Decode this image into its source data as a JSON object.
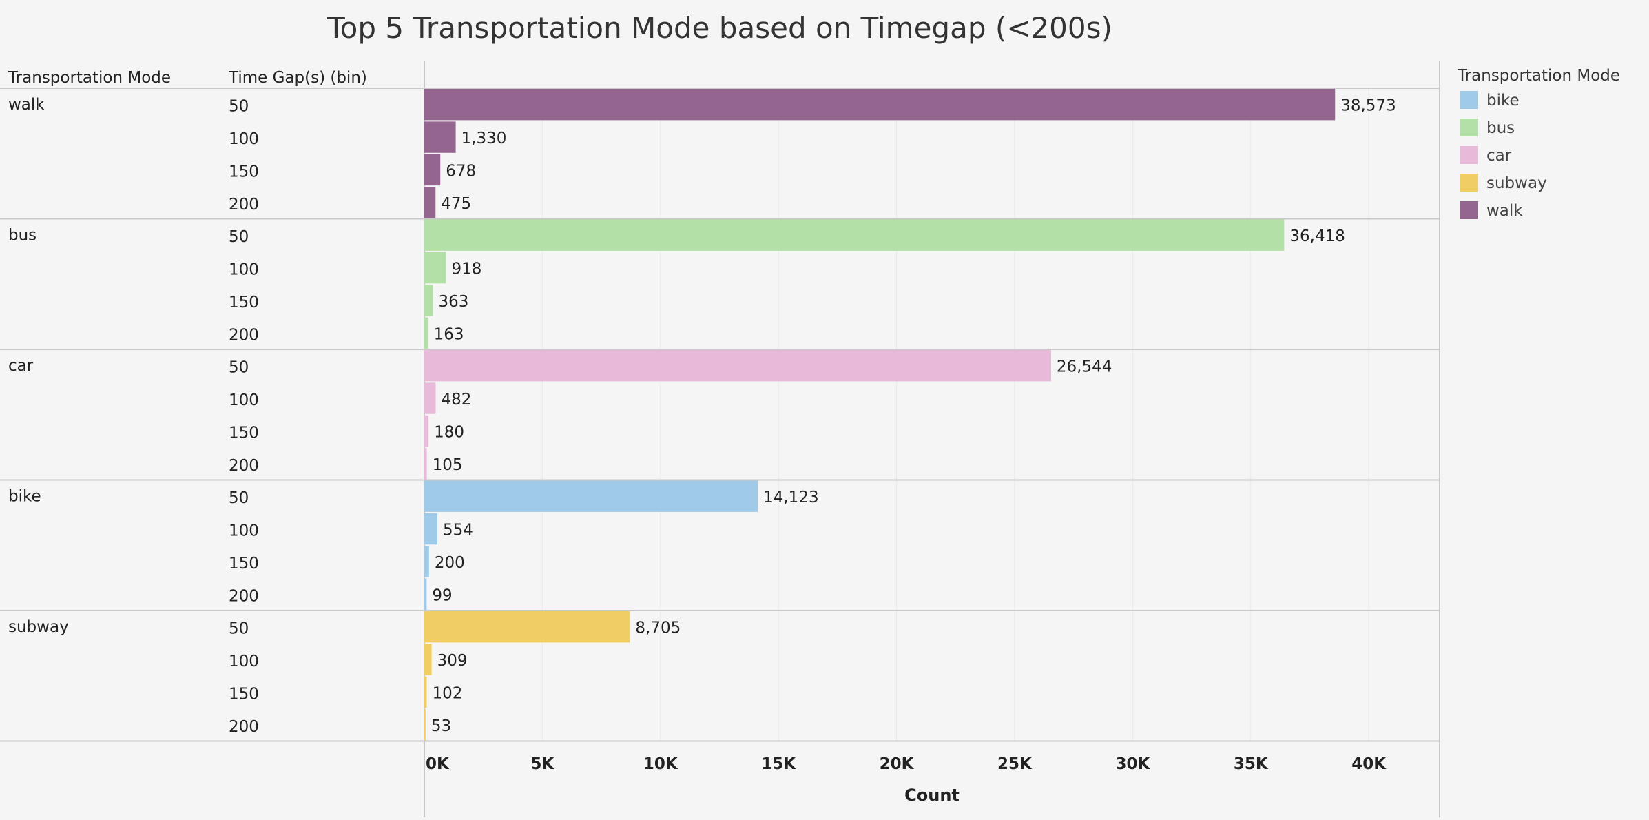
{
  "chart_data": {
    "type": "bar",
    "orientation": "horizontal",
    "title": "Top 5 Transportation Mode based on Timegap (<200s)",
    "row_headers": [
      "Transportation Mode",
      "Time Gap(s) (bin)"
    ],
    "xlabel": "Count",
    "xlim": [
      0,
      43000
    ],
    "x_ticks": [
      0,
      5000,
      10000,
      15000,
      20000,
      25000,
      30000,
      35000,
      40000
    ],
    "x_tick_labels": [
      "0K",
      "5K",
      "10K",
      "15K",
      "20K",
      "25K",
      "30K",
      "35K",
      "40K"
    ],
    "grid": "vertical",
    "legend": {
      "title": "Transportation Mode",
      "position": "right",
      "items": [
        {
          "label": "bike",
          "color": "#a0cbe8"
        },
        {
          "label": "bus",
          "color": "#b3e0a6"
        },
        {
          "label": "car",
          "color": "#e8b9d9"
        },
        {
          "label": "subway",
          "color": "#f1ce63"
        },
        {
          "label": "walk",
          "color": "#94668f"
        }
      ]
    },
    "groups": [
      {
        "mode": "walk",
        "color": "#94668f",
        "bins": [
          "50",
          "100",
          "150",
          "200"
        ],
        "values": [
          38573,
          1330,
          678,
          475
        ],
        "labels": [
          "38,573",
          "1,330",
          "678",
          "475"
        ]
      },
      {
        "mode": "bus",
        "color": "#b3e0a6",
        "bins": [
          "50",
          "100",
          "150",
          "200"
        ],
        "values": [
          36418,
          918,
          363,
          163
        ],
        "labels": [
          "36,418",
          "918",
          "363",
          "163"
        ]
      },
      {
        "mode": "car",
        "color": "#e8b9d9",
        "bins": [
          "50",
          "100",
          "150",
          "200"
        ],
        "values": [
          26544,
          482,
          180,
          105
        ],
        "labels": [
          "26,544",
          "482",
          "180",
          "105"
        ]
      },
      {
        "mode": "bike",
        "color": "#a0cbe8",
        "bins": [
          "50",
          "100",
          "150",
          "200"
        ],
        "values": [
          14123,
          554,
          200,
          99
        ],
        "labels": [
          "14,123",
          "554",
          "200",
          "99"
        ]
      },
      {
        "mode": "subway",
        "color": "#f1ce63",
        "bins": [
          "50",
          "100",
          "150",
          "200"
        ],
        "values": [
          8705,
          309,
          102,
          53
        ],
        "labels": [
          "8,705",
          "309",
          "102",
          "53"
        ]
      }
    ]
  }
}
